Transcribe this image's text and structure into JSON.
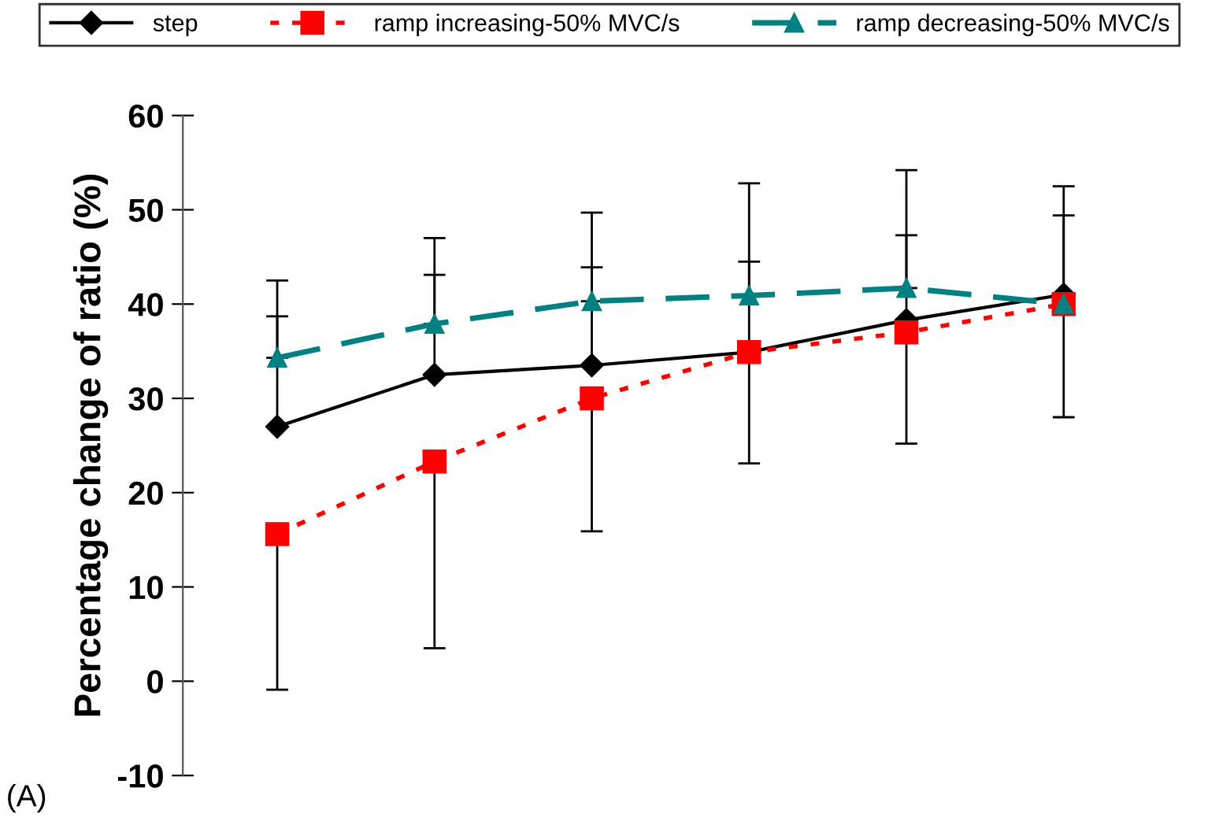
{
  "chart_data": {
    "type": "line",
    "ylabel": "Percentage change of ratio (%)",
    "categories": [
      null,
      null,
      null,
      null,
      null,
      null
    ],
    "series": [
      {
        "name": "step",
        "color": "#000000",
        "marker": "diamond",
        "line_style": "solid",
        "values": [
          27.0,
          32.5,
          33.5,
          34.9,
          38.3,
          41.0
        ],
        "errors": [
          [
            27.0,
            38.7
          ],
          [
            32.5,
            43.1
          ],
          [
            33.5,
            43.9
          ],
          [
            34.9,
            44.5
          ],
          [
            38.3,
            47.3
          ],
          [
            41.0,
            49.4
          ]
        ]
      },
      {
        "name": "ramp increasing-50% MVC/s",
        "color": "#ff0000",
        "marker": "square",
        "line_style": "dotted",
        "values": [
          15.6,
          23.3,
          30.0,
          34.9,
          37.0,
          40.0
        ],
        "errors": [
          [
            -0.9,
            15.6
          ],
          [
            3.5,
            23.3
          ],
          [
            15.9,
            30.0
          ],
          [
            23.1,
            34.9
          ],
          [
            25.2,
            37.0
          ],
          [
            28.0,
            40.0
          ]
        ]
      },
      {
        "name": "ramp decreasing-50% MVC/s",
        "color": "#008080",
        "marker": "triangle",
        "line_style": "dashed",
        "values": [
          34.3,
          37.9,
          40.3,
          40.9,
          41.7,
          40.0
        ],
        "errors": [
          [
            34.3,
            42.5
          ],
          [
            37.9,
            47.0
          ],
          [
            40.3,
            49.7
          ],
          [
            40.9,
            52.8
          ],
          [
            41.7,
            54.2
          ],
          [
            40.0,
            52.5
          ]
        ]
      }
    ],
    "ylim": [
      -10,
      60
    ],
    "yticks": [
      -10,
      0,
      10,
      20,
      30,
      40,
      50,
      60
    ],
    "grid": false,
    "legend": "top",
    "tick_labels": "y",
    "annotations": [
      "(A)"
    ]
  }
}
